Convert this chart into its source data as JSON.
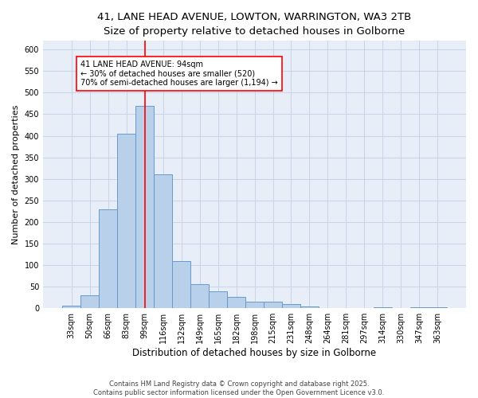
{
  "title_line1": "41, LANE HEAD AVENUE, LOWTON, WARRINGTON, WA3 2TB",
  "title_line2": "Size of property relative to detached houses in Golborne",
  "xlabel": "Distribution of detached houses by size in Golborne",
  "ylabel": "Number of detached properties",
  "bar_labels": [
    "33sqm",
    "50sqm",
    "66sqm",
    "83sqm",
    "99sqm",
    "116sqm",
    "132sqm",
    "149sqm",
    "165sqm",
    "182sqm",
    "198sqm",
    "215sqm",
    "231sqm",
    "248sqm",
    "264sqm",
    "281sqm",
    "297sqm",
    "314sqm",
    "330sqm",
    "347sqm",
    "363sqm"
  ],
  "bar_values": [
    5,
    30,
    230,
    405,
    470,
    310,
    110,
    55,
    40,
    27,
    15,
    15,
    10,
    4,
    0,
    0,
    0,
    3,
    0,
    2,
    2
  ],
  "bar_color": "#B8D0EA",
  "bar_edgecolor": "#6699CC",
  "vline_x": 4,
  "vline_color": "red",
  "annotation_text": "41 LANE HEAD AVENUE: 94sqm\n← 30% of detached houses are smaller (520)\n70% of semi-detached houses are larger (1,194) →",
  "annotation_box_color": "white",
  "annotation_box_edgecolor": "red",
  "ylim": [
    0,
    620
  ],
  "yticks": [
    0,
    50,
    100,
    150,
    200,
    250,
    300,
    350,
    400,
    450,
    500,
    550,
    600
  ],
  "grid_color": "#C8D4E8",
  "background_color": "#E8EEF8",
  "footer_text": "Contains HM Land Registry data © Crown copyright and database right 2025.\nContains public sector information licensed under the Open Government Licence v3.0.",
  "fig_width": 6.0,
  "fig_height": 5.0,
  "title1_fontsize": 9.5,
  "title2_fontsize": 8.5,
  "xlabel_fontsize": 8.5,
  "ylabel_fontsize": 8.0,
  "tick_fontsize": 7.0,
  "annot_fontsize": 7.0,
  "footer_fontsize": 6.0
}
